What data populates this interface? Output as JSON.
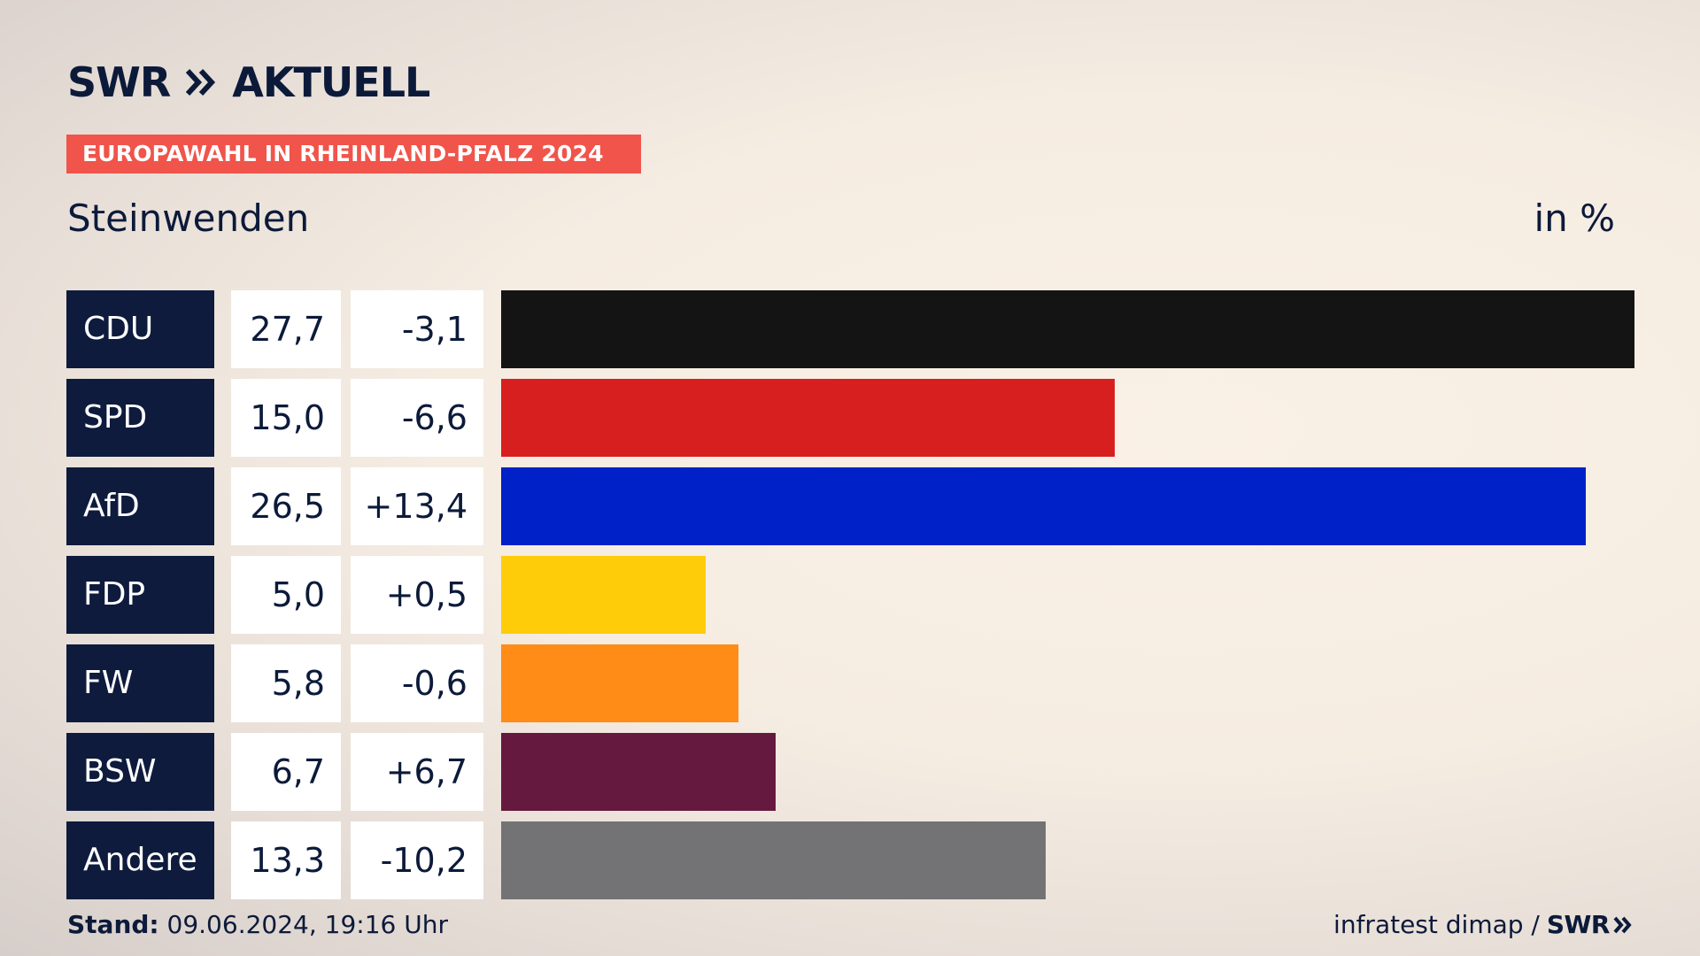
{
  "header": {
    "brand": "SWR",
    "brand_suffix": "AKTUELL",
    "banner": "EUROPAWAHL IN RHEINLAND-PFALZ 2024",
    "location": "Steinwenden",
    "unit": "in %"
  },
  "colors": {
    "navy": "#0e1b3d",
    "banner_red": "#f0544a"
  },
  "chart_data": {
    "type": "bar",
    "orientation": "horizontal",
    "categories": [
      "CDU",
      "SPD",
      "AfD",
      "FDP",
      "FW",
      "BSW",
      "Andere"
    ],
    "values": [
      27.7,
      15.0,
      26.5,
      5.0,
      5.8,
      6.7,
      13.3
    ],
    "values_label": [
      "27,7",
      "15,0",
      "26,5",
      "5,0",
      "5,8",
      "6,7",
      "13,3"
    ],
    "diff": [
      -3.1,
      -6.6,
      13.4,
      0.5,
      -0.6,
      6.7,
      -10.2
    ],
    "diff_label": [
      "-3,1",
      "-6,6",
      "+13,4",
      "+0,5",
      "-0,6",
      "+6,7",
      "-10,2"
    ],
    "colors": [
      "#141414",
      "#d71f1f",
      "#0021c8",
      "#ffcc0a",
      "#ff8c17",
      "#66193f",
      "#737375"
    ],
    "xlim": [
      0,
      27.7
    ],
    "grid": false,
    "legend": "none"
  },
  "footer": {
    "stand_label": "Stand:",
    "stand_value": "09.06.2024, 19:16 Uhr",
    "source": "infratest dimap /",
    "source_brand": "SWR"
  }
}
